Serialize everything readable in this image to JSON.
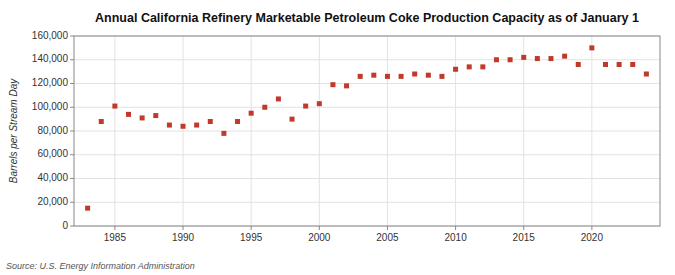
{
  "chart_data": {
    "type": "scatter",
    "title": "Annual California Refinery Marketable Petroleum Coke Production Capacity as of January 1",
    "ylabel": "Barrels per Stream Day",
    "annotations": [
      "Source: U.S. Energy Information Administration"
    ],
    "x": [
      1983,
      1984,
      1985,
      1986,
      1987,
      1988,
      1989,
      1990,
      1991,
      1992,
      1993,
      1994,
      1995,
      1996,
      1997,
      1998,
      1999,
      2000,
      2001,
      2002,
      2003,
      2004,
      2005,
      2006,
      2007,
      2008,
      2009,
      2010,
      2011,
      2012,
      2013,
      2014,
      2015,
      2016,
      2017,
      2018,
      2019,
      2020,
      2021,
      2022,
      2023,
      2024
    ],
    "values": [
      15000,
      88000,
      101000,
      94000,
      91000,
      93000,
      85000,
      84000,
      85000,
      88000,
      78000,
      88000,
      95000,
      100000,
      107000,
      90000,
      101000,
      103000,
      119000,
      118000,
      126000,
      127000,
      126000,
      126000,
      128000,
      127000,
      126000,
      132000,
      134000,
      134000,
      140000,
      140000,
      142000,
      141000,
      141000,
      143000,
      136000,
      150000,
      136000,
      136000,
      136000,
      128000
    ],
    "color": "#c0392b",
    "marker": "square",
    "xlim": [
      1982,
      2025
    ],
    "xticks": [
      1985,
      1990,
      1995,
      2000,
      2005,
      2010,
      2015,
      2020
    ],
    "ylim": [
      0,
      160000
    ],
    "yticks": [
      0,
      {
        "value": 20000,
        "label": "20,000"
      },
      {
        "value": 40000,
        "label": "40,000"
      },
      {
        "value": 60000,
        "label": "60,000"
      },
      {
        "value": 80000,
        "label": "80,000"
      },
      {
        "value": 100000,
        "label": "100,000"
      },
      {
        "value": 120000,
        "label": "120,000"
      },
      {
        "value": 140000,
        "label": "140,000"
      },
      {
        "value": 160000,
        "label": "160,000"
      }
    ],
    "grid": true
  }
}
